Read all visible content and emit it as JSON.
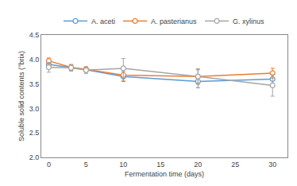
{
  "chart_data": {
    "type": "line",
    "xlabel": "Fermentation time (days)",
    "ylabel": "Soluble solid contents (°brix)",
    "x": [
      0,
      3,
      5,
      10,
      20,
      30
    ],
    "series": [
      {
        "name": "A. aceti",
        "color": "#5B9BD5",
        "marker": "circle",
        "line_style": "solid",
        "values": [
          3.9,
          3.83,
          3.79,
          3.65,
          3.55,
          3.6
        ],
        "errors": [
          0.06,
          0.05,
          0.05,
          0.1,
          0.13,
          0.09
        ]
      },
      {
        "name": "A. pasterianus",
        "color": "#ED7D31",
        "marker": "circle",
        "line_style": "solid",
        "values": [
          3.97,
          3.84,
          3.8,
          3.68,
          3.65,
          3.72
        ],
        "errors": [
          0.06,
          0.05,
          0.05,
          0.12,
          0.14,
          0.1
        ]
      },
      {
        "name": "G. xylinus",
        "color": "#A5A5A5",
        "marker": "circle",
        "line_style": "solid",
        "values": [
          3.84,
          3.83,
          3.78,
          3.82,
          3.65,
          3.47
        ],
        "errors": [
          0.1,
          0.07,
          0.07,
          0.2,
          0.16,
          0.22
        ]
      }
    ],
    "xlim": [
      -1,
      32
    ],
    "xticks": [
      0,
      5,
      10,
      15,
      20,
      25,
      30
    ],
    "ylim": [
      2.0,
      4.5
    ],
    "yticks": [
      {
        "value": 2.0,
        "label": "2.0"
      },
      2.5,
      {
        "value": 3.0,
        "label": "3.0"
      },
      3.5,
      {
        "value": 4.0,
        "label": "4.0"
      },
      4.5
    ],
    "grid": false,
    "legend": "top"
  }
}
